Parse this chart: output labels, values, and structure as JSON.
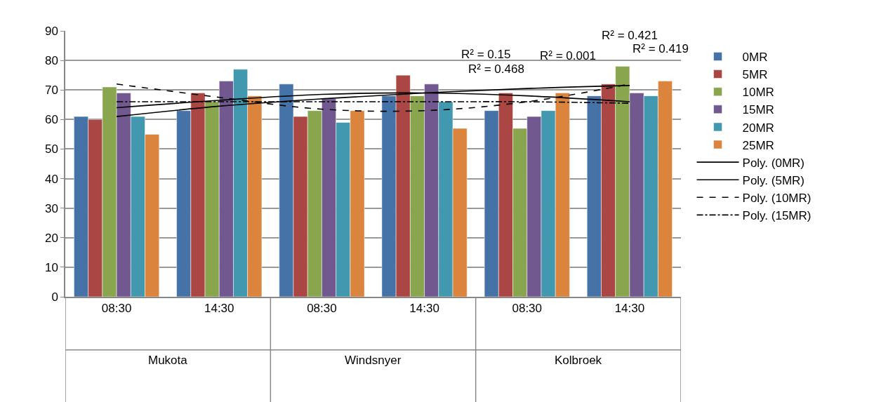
{
  "chart_data": {
    "type": "bar",
    "categories": [
      "08:30",
      "14:30",
      "08:30",
      "14:30",
      "08:30",
      "14:30"
    ],
    "series": [
      {
        "name": "0MR",
        "color": "#4572a7",
        "values": [
          61,
          63,
          72,
          68,
          63,
          68
        ]
      },
      {
        "name": "5MR",
        "color": "#aa4643",
        "values": [
          60,
          69,
          61,
          75,
          69,
          72
        ]
      },
      {
        "name": "10MR",
        "color": "#89a54e",
        "values": [
          71,
          66,
          63,
          68,
          57,
          78
        ]
      },
      {
        "name": "15MR",
        "color": "#71588f",
        "values": [
          69,
          73,
          67,
          72,
          61,
          69
        ]
      },
      {
        "name": "20MR",
        "color": "#4198af",
        "values": [
          61,
          77,
          59,
          66,
          63,
          68
        ]
      },
      {
        "name": "25MR",
        "color": "#db843d",
        "values": [
          55,
          68,
          63,
          57,
          69,
          73
        ]
      },
      {
        "name": "Poly. (0MR)",
        "type": "line",
        "color": "#000000",
        "line_style": "solid",
        "values": [
          64,
          66.5,
          68.5,
          69,
          68,
          66
        ]
      },
      {
        "name": "Poly. (5MR)",
        "type": "line",
        "color": "#000000",
        "line_style": "solid",
        "values": [
          61,
          64.5,
          67,
          69,
          70.5,
          71.5
        ]
      },
      {
        "name": "Poly. (10MR)",
        "type": "line",
        "color": "#000000",
        "line_style": "dashed",
        "values": [
          72,
          67.5,
          63.5,
          63,
          66,
          72
        ]
      },
      {
        "name": "Poly. (15MR)",
        "type": "line",
        "color": "#000000",
        "line_style": "dashdot",
        "values": [
          66,
          66,
          66,
          66,
          66,
          65.5
        ]
      }
    ],
    "annotations": [
      "Mukota",
      "Windsnyer",
      "Kolbroek",
      "R² = 0.421",
      "R² = 0.468",
      "R² = 0.419",
      "R² = 0.001",
      "R² = 0.15"
    ],
    "ylim": [
      0,
      90
    ],
    "yticks": [
      0,
      10,
      20,
      30,
      40,
      50,
      60,
      70,
      80,
      90
    ],
    "grid": "y",
    "legend": "right",
    "marker": "none"
  }
}
